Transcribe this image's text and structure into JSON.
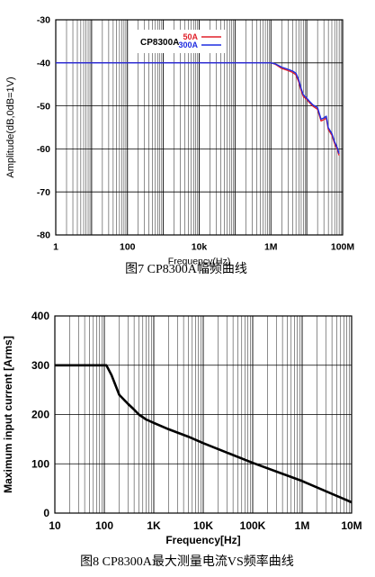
{
  "chart_data": [
    {
      "type": "line",
      "caption": "图7 CP8300A幅频曲线",
      "xlabel": "Frequency(Hz)",
      "ylabel": "Amplitude(dB,0dB=1V)",
      "x_scale": "log",
      "xlim": [
        1,
        100000000
      ],
      "ylim": [
        -80,
        -30
      ],
      "grid": true,
      "legend_title": "CP8300A",
      "legend_position": "top-center",
      "x_ticks": [
        {
          "value": 1,
          "label": "1"
        },
        {
          "value": 100,
          "label": "100"
        },
        {
          "value": 10000,
          "label": "10k"
        },
        {
          "value": 1000000,
          "label": "1M"
        },
        {
          "value": 100000000,
          "label": "100M"
        }
      ],
      "y_ticks": [
        {
          "value": -30,
          "label": "-30"
        },
        {
          "value": -40,
          "label": "-40"
        },
        {
          "value": -50,
          "label": "-50"
        },
        {
          "value": -60,
          "label": "-60"
        },
        {
          "value": -70,
          "label": "-70"
        },
        {
          "value": -80,
          "label": "-80"
        }
      ],
      "series": [
        {
          "name": "50A",
          "color": "#e0202a",
          "x": [
            1,
            1000000,
            1300000,
            2000000,
            3000000,
            4000000,
            5000000,
            6000000,
            7000000,
            8000000,
            10000000,
            12000000,
            15000000,
            20000000,
            25000000,
            30000000,
            35000000,
            40000000,
            50000000,
            60000000,
            70000000,
            80000000
          ],
          "y": [
            -40,
            -40,
            -40.3,
            -41.3,
            -41.8,
            -42.2,
            -42.8,
            -44.5,
            -46.5,
            -47.8,
            -48.5,
            -49.3,
            -50.1,
            -50.8,
            -53.5,
            -53.2,
            -52.8,
            -55.5,
            -56.8,
            -58.8,
            -60,
            -61.5
          ]
        },
        {
          "name": "300A",
          "color": "#1f2de0",
          "x": [
            1,
            1000000,
            1300000,
            2000000,
            3000000,
            4000000,
            5000000,
            6000000,
            7000000,
            8000000,
            10000000,
            12000000,
            15000000,
            20000000,
            25000000,
            30000000,
            35000000,
            40000000,
            50000000,
            60000000,
            70000000,
            80000000
          ],
          "y": [
            -40,
            -40,
            -40.2,
            -41,
            -41.5,
            -41.9,
            -42.4,
            -44,
            -46,
            -47.4,
            -48.2,
            -49,
            -49.8,
            -50.4,
            -53.1,
            -52.8,
            -52.4,
            -55.1,
            -56.4,
            -58.4,
            -59.6,
            -61.1
          ]
        }
      ]
    },
    {
      "type": "line",
      "caption": "图8 CP8300A最大测量电流VS频率曲线",
      "xlabel": "Frequency[Hz]",
      "ylabel": "Maximum input current [Arms]",
      "x_scale": "log",
      "xlim": [
        10,
        10000000
      ],
      "ylim": [
        0,
        400
      ],
      "grid": true,
      "x_ticks": [
        {
          "value": 10,
          "label": "10"
        },
        {
          "value": 100,
          "label": "100"
        },
        {
          "value": 1000,
          "label": "1K"
        },
        {
          "value": 10000,
          "label": "10K"
        },
        {
          "value": 100000,
          "label": "100K"
        },
        {
          "value": 1000000,
          "label": "1M"
        },
        {
          "value": 10000000,
          "label": "10M"
        }
      ],
      "y_ticks": [
        {
          "value": 0,
          "label": "0"
        },
        {
          "value": 100,
          "label": "100"
        },
        {
          "value": 200,
          "label": "200"
        },
        {
          "value": 300,
          "label": "300"
        },
        {
          "value": 400,
          "label": "400"
        }
      ],
      "series": [
        {
          "color": "#000000",
          "x": [
            10,
            110,
            140,
            200,
            300,
            400,
            500,
            700,
            1000,
            2000,
            5000,
            10000,
            100000,
            1000000,
            10000000
          ],
          "y": [
            300,
            300,
            280,
            240,
            222,
            210,
            200,
            190,
            183,
            170,
            155,
            142,
            102,
            65,
            22
          ]
        }
      ]
    }
  ]
}
